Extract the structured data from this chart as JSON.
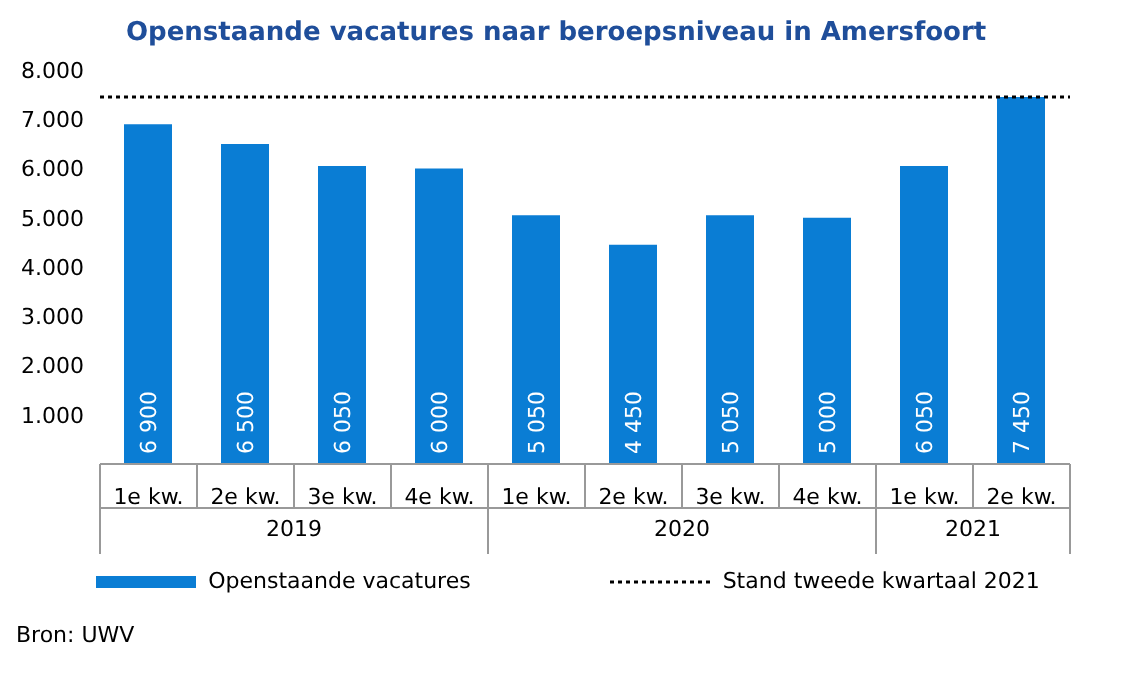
{
  "chart_data": {
    "type": "bar",
    "title": "Openstaande vacatures naar beroepsniveau in Amersfoort",
    "categories": [
      "1e kw.",
      "2e kw.",
      "3e kw.",
      "4e kw.",
      "1e kw.",
      "2e kw.",
      "3e kw.",
      "4e kw.",
      "1e kw.",
      "2e kw."
    ],
    "series": [
      {
        "name": "Openstaande vacatures",
        "color": "#0a7dd4",
        "values": [
          6900,
          6500,
          6050,
          6000,
          5050,
          4450,
          5050,
          5000,
          6050,
          7450
        ]
      }
    ],
    "value_labels": [
      "6 900",
      "6 500",
      "6 050",
      "6 000",
      "5 050",
      "4 450",
      "5 050",
      "5 000",
      "6 050",
      "7 450"
    ],
    "ylim": [
      0,
      8000
    ],
    "yticks": [
      {
        "value": 1000,
        "label": "1.000"
      },
      {
        "value": 2000,
        "label": "2.000"
      },
      {
        "value": 3000,
        "label": "3.000"
      },
      {
        "value": 4000,
        "label": "4.000"
      },
      {
        "value": 5000,
        "label": "5.000"
      },
      {
        "value": 6000,
        "label": "6.000"
      },
      {
        "value": 7000,
        "label": "7.000"
      },
      {
        "value": 8000,
        "label": "8.000"
      }
    ],
    "ref_lines": [
      {
        "axis": "y",
        "value": 7450,
        "label": "Stand tweede kwartaal 2021",
        "color": "#000000",
        "line_style": "dotted"
      }
    ],
    "annotations": [
      "2019",
      "2020",
      "2021",
      "Bron: UWV"
    ],
    "legend": "bottom"
  }
}
